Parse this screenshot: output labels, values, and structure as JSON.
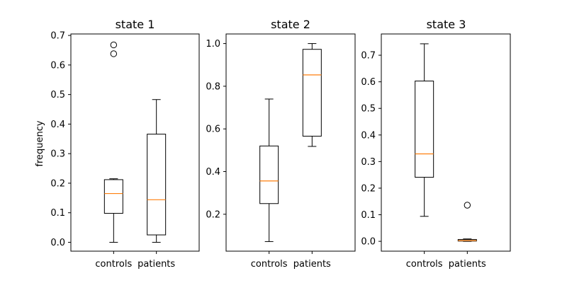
{
  "figure": {
    "ylabel": "frequency"
  },
  "chart_data": [
    {
      "type": "boxplot",
      "title": "state 1",
      "xlabel": "",
      "ylabel": "frequency",
      "categories": [
        "controls",
        "patients"
      ],
      "ylim": [
        -0.03,
        0.705
      ],
      "yticks": [
        0.0,
        0.1,
        0.2,
        0.3,
        0.4,
        0.5,
        0.6,
        0.7
      ],
      "ytick_labels": [
        "0.0",
        "0.1",
        "0.2",
        "0.3",
        "0.4",
        "0.5",
        "0.6",
        "0.7"
      ],
      "boxes": [
        {
          "whisker_low": 0.0,
          "q1": 0.098,
          "median": 0.165,
          "q3": 0.212,
          "whisker_high": 0.215,
          "outliers": [
            0.638,
            0.668
          ]
        },
        {
          "whisker_low": 0.0,
          "q1": 0.025,
          "median": 0.144,
          "q3": 0.366,
          "whisker_high": 0.483,
          "outliers": []
        }
      ]
    },
    {
      "type": "boxplot",
      "title": "state 2",
      "xlabel": "",
      "ylabel": "",
      "categories": [
        "controls",
        "patients"
      ],
      "ylim": [
        0.027,
        1.045
      ],
      "yticks": [
        0.2,
        0.4,
        0.6,
        0.8,
        1.0
      ],
      "ytick_labels": [
        "0.2",
        "0.4",
        "0.6",
        "0.8",
        "1.0"
      ],
      "boxes": [
        {
          "whisker_low": 0.072,
          "q1": 0.25,
          "median": 0.356,
          "q3": 0.52,
          "whisker_high": 0.74,
          "outliers": []
        },
        {
          "whisker_low": 0.518,
          "q1": 0.566,
          "median": 0.853,
          "q3": 0.973,
          "whisker_high": 1.0,
          "outliers": []
        }
      ]
    },
    {
      "type": "boxplot",
      "title": "state 3",
      "xlabel": "",
      "ylabel": "",
      "categories": [
        "controls",
        "patients"
      ],
      "ylim": [
        -0.037,
        0.78
      ],
      "yticks": [
        0.0,
        0.1,
        0.2,
        0.3,
        0.4,
        0.5,
        0.6,
        0.7
      ],
      "ytick_labels": [
        "0.0",
        "0.1",
        "0.2",
        "0.3",
        "0.4",
        "0.5",
        "0.6",
        "0.7"
      ],
      "boxes": [
        {
          "whisker_low": 0.094,
          "q1": 0.241,
          "median": 0.329,
          "q3": 0.603,
          "whisker_high": 0.743,
          "outliers": []
        },
        {
          "whisker_low": 0.0,
          "q1": 0.001,
          "median": 0.003,
          "q3": 0.007,
          "whisker_high": 0.009,
          "outliers": [
            0.136
          ]
        }
      ]
    }
  ],
  "colors": {
    "box": "#000000",
    "median": "#ff7f0e",
    "axes": "#000000",
    "background": "#ffffff"
  }
}
